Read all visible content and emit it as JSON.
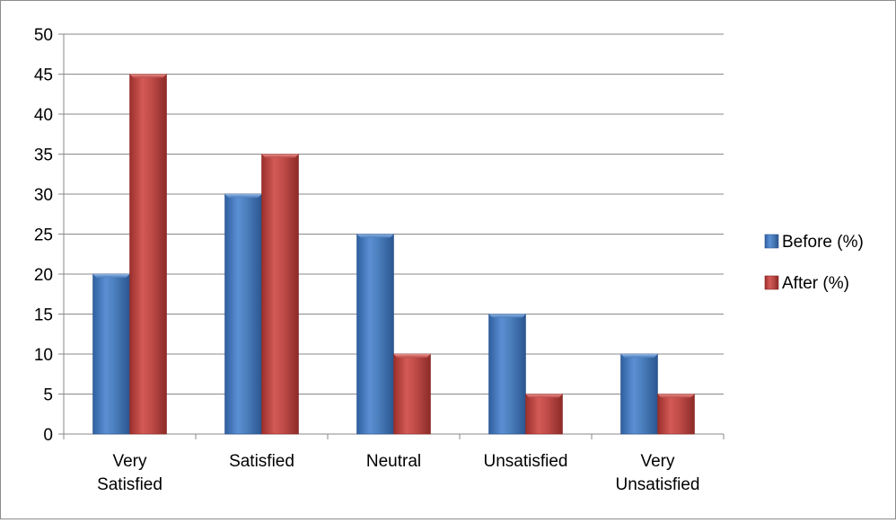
{
  "chart_data": {
    "type": "bar",
    "title": "",
    "xlabel": "",
    "ylabel": "",
    "categories": [
      [
        "Very",
        "Satisfied"
      ],
      [
        "Satisfied"
      ],
      [
        "Neutral"
      ],
      [
        "Unsatisfied"
      ],
      [
        "Very",
        "Unsatisfied"
      ]
    ],
    "series": [
      {
        "name": "Before (%)",
        "values": [
          20,
          30,
          25,
          15,
          10
        ],
        "color": "#4a7ebb"
      },
      {
        "name": "After (%)",
        "values": [
          45,
          35,
          10,
          5,
          5
        ],
        "color": "#be4b48"
      }
    ],
    "ylim": [
      0,
      50
    ],
    "yticks": [
      0,
      5,
      10,
      15,
      20,
      25,
      30,
      35,
      40,
      45,
      50
    ],
    "grid": true,
    "legend_position": "right"
  }
}
